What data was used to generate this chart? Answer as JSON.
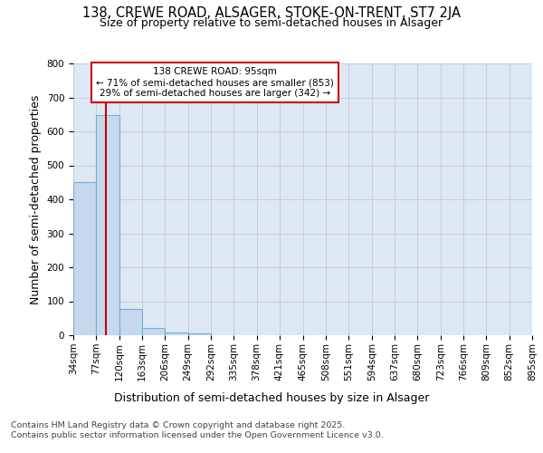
{
  "title1": "138, CREWE ROAD, ALSAGER, STOKE-ON-TRENT, ST7 2JA",
  "title2": "Size of property relative to semi-detached houses in Alsager",
  "xlabel": "Distribution of semi-detached houses by size in Alsager",
  "ylabel": "Number of semi-detached properties",
  "bin_edges": [
    34,
    77,
    120,
    163,
    206,
    249,
    292,
    335,
    378,
    421,
    465,
    508,
    551,
    594,
    637,
    680,
    723,
    766,
    809,
    852,
    895
  ],
  "bar_heights": [
    450,
    648,
    78,
    22,
    8,
    5,
    0,
    0,
    0,
    0,
    0,
    0,
    0,
    0,
    0,
    0,
    0,
    0,
    0,
    0
  ],
  "bar_color": "#c5d8ee",
  "bar_edge_color": "#7aadd4",
  "property_size": 95,
  "pct_smaller": 71,
  "pct_smaller_count": 853,
  "pct_larger": 29,
  "pct_larger_count": 342,
  "red_line_color": "#cc0000",
  "ylim": [
    0,
    800
  ],
  "yticks": [
    0,
    100,
    200,
    300,
    400,
    500,
    600,
    700,
    800
  ],
  "grid_color": "#cccccc",
  "bg_color": "#dde8f5",
  "footer1": "Contains HM Land Registry data © Crown copyright and database right 2025.",
  "footer2": "Contains public sector information licensed under the Open Government Licence v3.0.",
  "title_fontsize": 10.5,
  "subtitle_fontsize": 9,
  "tick_fontsize": 7.5,
  "label_fontsize": 9,
  "footer_fontsize": 6.8
}
